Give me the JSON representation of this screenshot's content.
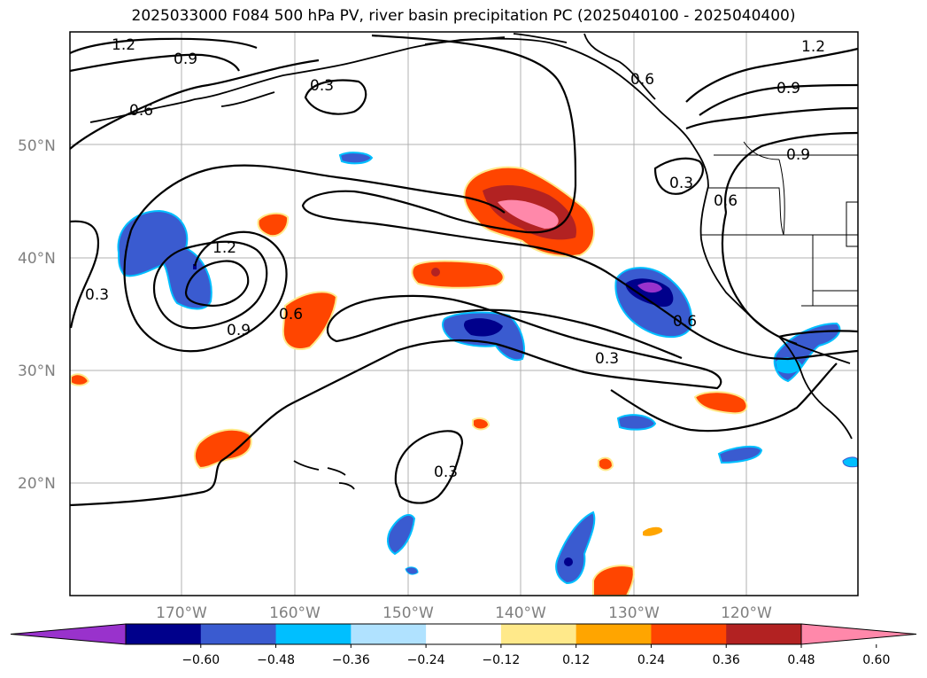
{
  "title": "2025033000 F084 500 hPa PV, river basin precipitation PC (2025040100 - 2025040400)",
  "map": {
    "lat_ticks": [
      "50°N",
      "40°N",
      "30°N",
      "20°N"
    ],
    "lon_ticks": [
      "170°W",
      "160°W",
      "150°W",
      "140°W",
      "130°W",
      "120°W"
    ],
    "grid": true
  },
  "pv_contour_labels": [
    "1.2",
    "0.9",
    "0.3",
    "0.6",
    "0.6",
    "1.2",
    "0.9",
    "0.9",
    "0.6",
    "0.3",
    "0.3",
    "1.2",
    "0.9",
    "0.6",
    "0.6",
    "0.3",
    "0.3"
  ],
  "colorbar": {
    "ticks": [
      "−0.60",
      "−0.48",
      "−0.36",
      "−0.24",
      "−0.12",
      "0.12",
      "0.24",
      "0.36",
      "0.48",
      "0.60"
    ],
    "colors": [
      "#9932cc",
      "#00008b",
      "#3a5bd0",
      "#00bfff",
      "#b0e2ff",
      "#ffffff",
      "#ffe98a",
      "#ffa500",
      "#ff4500",
      "#b22222",
      "#ff88aa"
    ],
    "extend": "both"
  }
}
